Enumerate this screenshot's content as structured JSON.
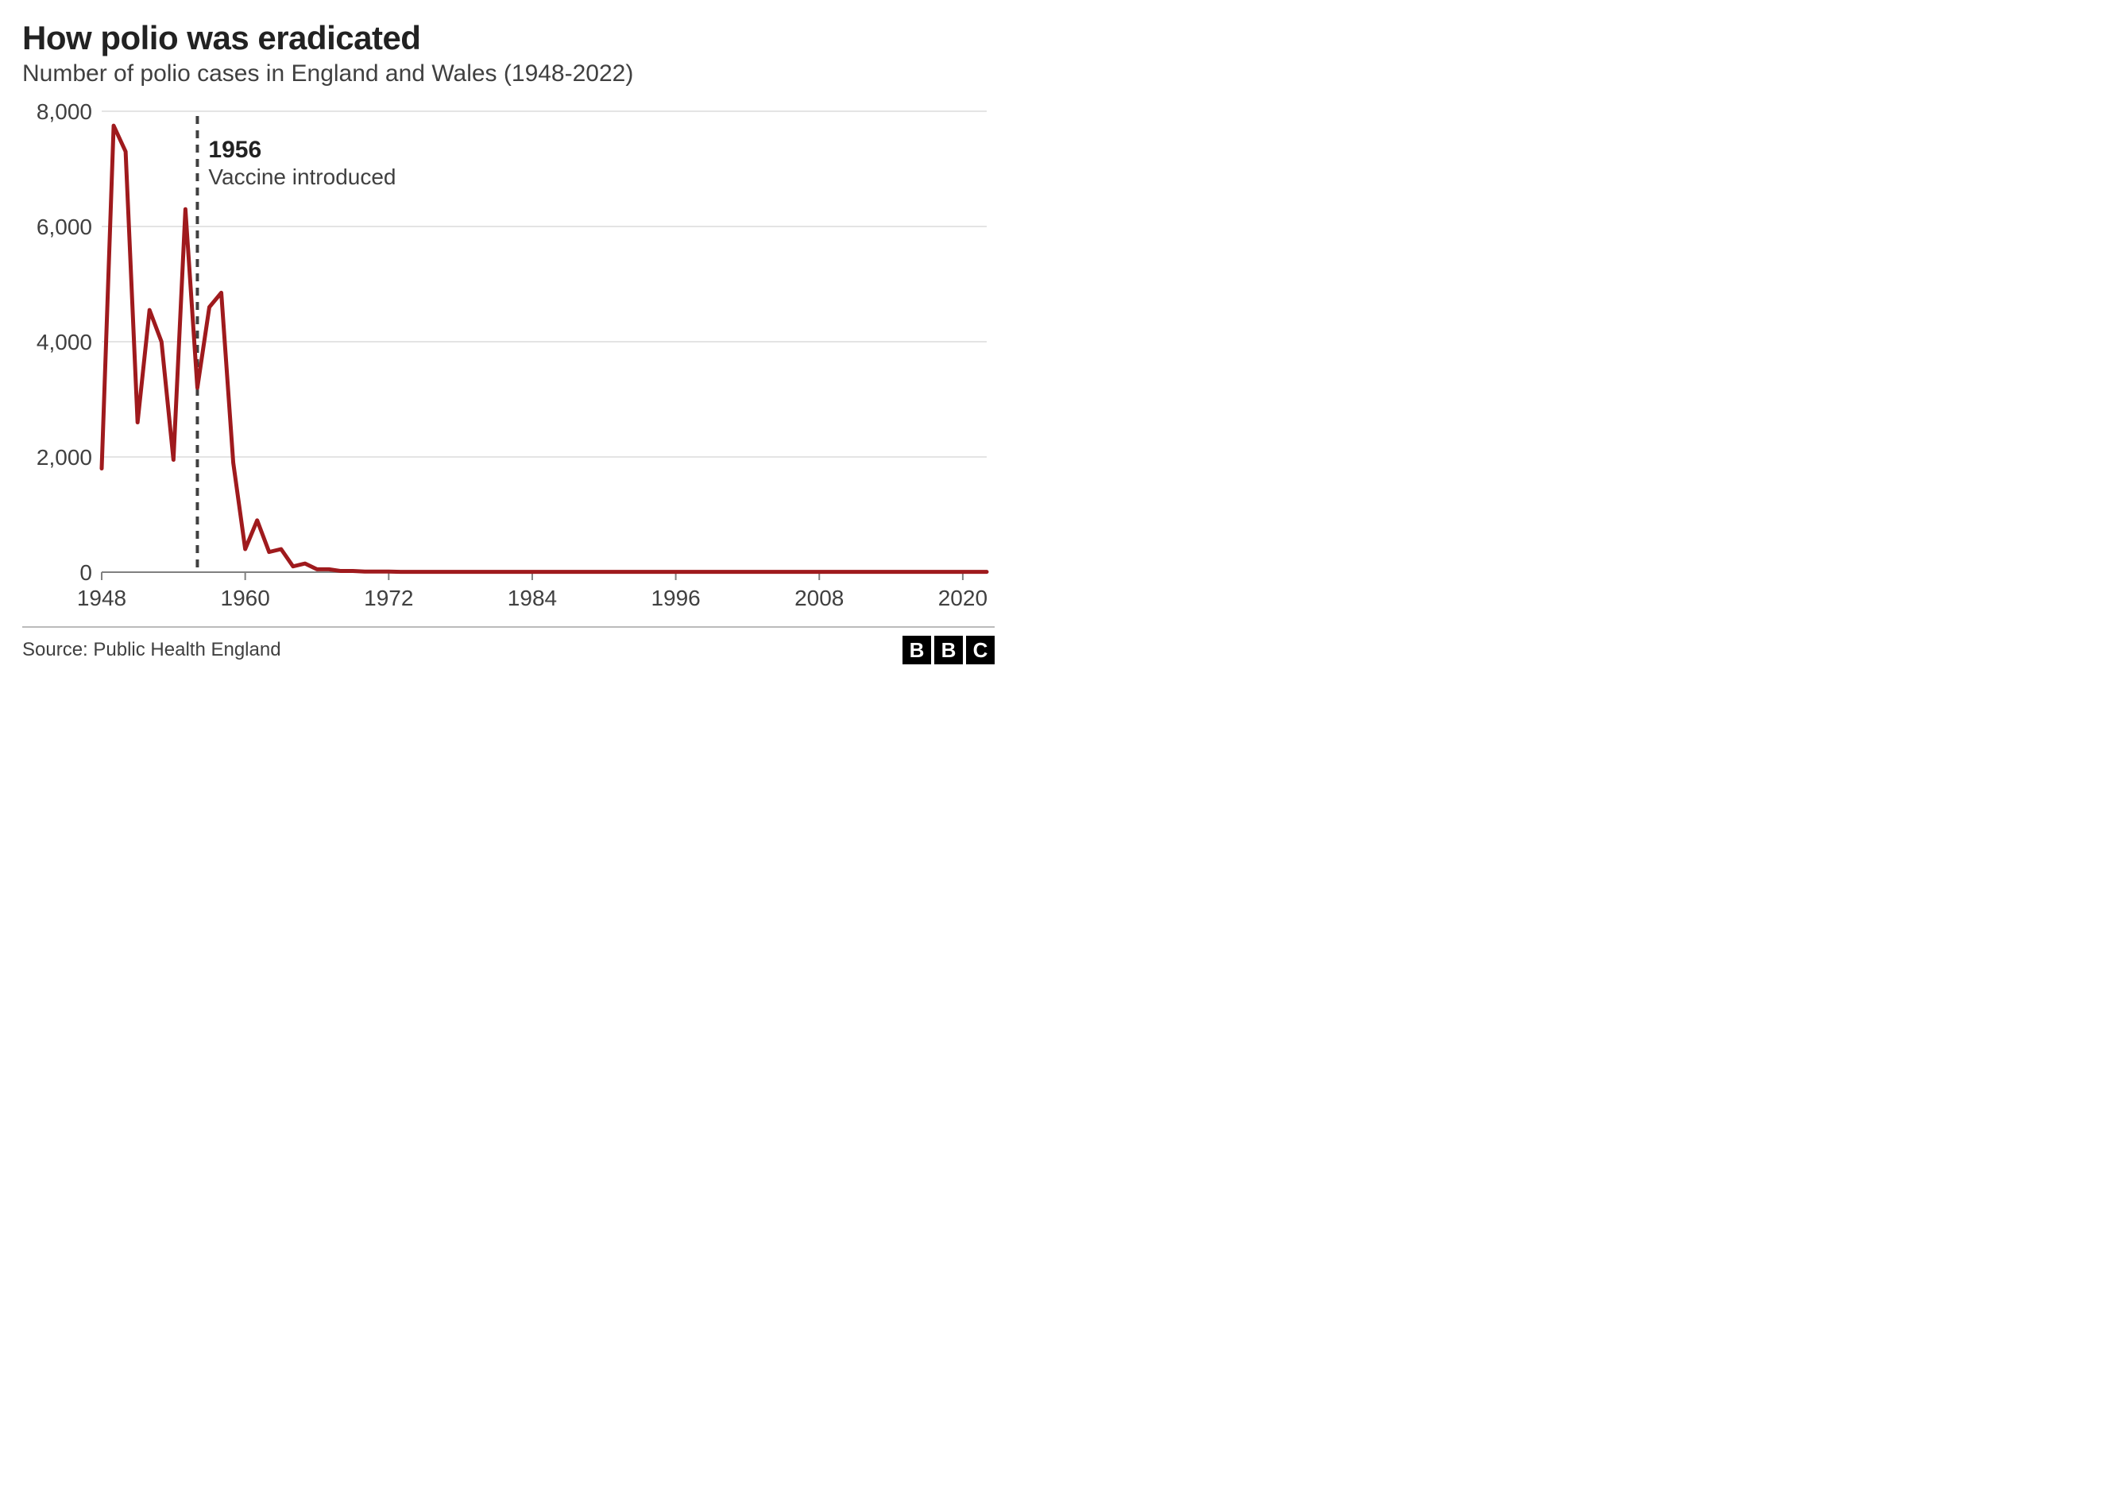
{
  "title": "How polio was eradicated",
  "subtitle": "Number of polio cases in England and Wales (1948-2022)",
  "source": "Source: Public Health England",
  "logo_letters": [
    "B",
    "B",
    "C"
  ],
  "chart": {
    "type": "line",
    "line_color": "#9f1a1d",
    "line_width": 5,
    "background_color": "#ffffff",
    "grid_color": "#c8c8c8",
    "axis_line_color": "#808080",
    "axis_label_color": "#404040",
    "axis_label_fontsize": 28,
    "annotation": {
      "year": 1956,
      "title": "1956",
      "text": "Vaccine introduced",
      "title_fontsize": 30,
      "text_fontsize": 28,
      "title_weight": 700,
      "line_color": "#404040",
      "line_dash": "10,8",
      "line_width": 4
    },
    "xlim": [
      1948,
      2022
    ],
    "ylim": [
      0,
      8000
    ],
    "x_ticks": [
      1948,
      1960,
      1972,
      1984,
      1996,
      2008,
      2020
    ],
    "y_ticks": [
      0,
      2000,
      4000,
      6000,
      8000
    ],
    "y_tick_labels": [
      "0",
      "2,000",
      "4,000",
      "6,000",
      "8,000"
    ],
    "years": [
      1948,
      1949,
      1950,
      1951,
      1952,
      1953,
      1954,
      1955,
      1956,
      1957,
      1958,
      1959,
      1960,
      1961,
      1962,
      1963,
      1964,
      1965,
      1966,
      1967,
      1968,
      1969,
      1970,
      1971,
      1972,
      1973,
      1974,
      1975,
      1976,
      1977,
      1978,
      1979,
      1980,
      1981,
      1982,
      1983,
      1984,
      1985,
      1986,
      1987,
      1988,
      1989,
      1990,
      1991,
      1992,
      1993,
      1994,
      1995,
      1996,
      1997,
      1998,
      1999,
      2000,
      2001,
      2002,
      2003,
      2004,
      2005,
      2006,
      2007,
      2008,
      2009,
      2010,
      2011,
      2012,
      2013,
      2014,
      2015,
      2016,
      2017,
      2018,
      2019,
      2020,
      2021,
      2022
    ],
    "values": [
      1800,
      7750,
      7300,
      2600,
      4550,
      4000,
      1950,
      6300,
      3200,
      4600,
      4850,
      1900,
      400,
      900,
      350,
      400,
      100,
      150,
      50,
      50,
      20,
      20,
      10,
      10,
      10,
      5,
      5,
      5,
      5,
      5,
      5,
      5,
      5,
      5,
      5,
      5,
      5,
      5,
      5,
      5,
      5,
      5,
      5,
      5,
      5,
      5,
      5,
      5,
      5,
      5,
      5,
      5,
      5,
      5,
      5,
      5,
      5,
      5,
      5,
      5,
      5,
      5,
      5,
      5,
      5,
      5,
      5,
      5,
      5,
      5,
      5,
      5,
      5,
      5,
      5
    ]
  }
}
